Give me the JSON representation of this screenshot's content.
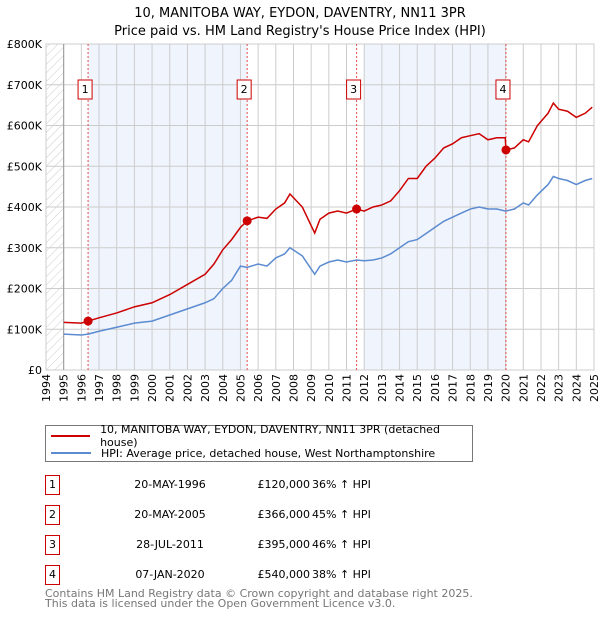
{
  "chart_data": {
    "type": "line",
    "title": "10, MANITOBA WAY, EYDON, DAVENTRY, NN11 3PR",
    "subtitle": "Price paid vs. HM Land Registry's House Price Index (HPI)",
    "ylim": [
      0,
      800000
    ],
    "xlim": [
      1994,
      2025
    ],
    "yticks": [
      {
        "v": 0,
        "label": "£0"
      },
      {
        "v": 100000,
        "label": "£100K"
      },
      {
        "v": 200000,
        "label": "£200K"
      },
      {
        "v": 300000,
        "label": "£300K"
      },
      {
        "v": 400000,
        "label": "£400K"
      },
      {
        "v": 500000,
        "label": "£500K"
      },
      {
        "v": 600000,
        "label": "£600K"
      },
      {
        "v": 700000,
        "label": "£700K"
      },
      {
        "v": 800000,
        "label": "£800K"
      }
    ],
    "xticks": [
      "1994",
      "1995",
      "1996",
      "1997",
      "1998",
      "1999",
      "2000",
      "2001",
      "2002",
      "2003",
      "2004",
      "2005",
      "2006",
      "2007",
      "2008",
      "2009",
      "2010",
      "2011",
      "2012",
      "2013",
      "2014",
      "2015",
      "2016",
      "2017",
      "2018",
      "2019",
      "2020",
      "2021",
      "2022",
      "2023",
      "2024",
      "2025"
    ],
    "grid": true,
    "shaded_periods": [
      [
        1996.38,
        2005.38
      ],
      [
        2012.0,
        2020.02
      ]
    ],
    "series": [
      {
        "name": "10, MANITOBA WAY, EYDON, DAVENTRY, NN11 3PR (detached house)",
        "color": "#cc0000",
        "x": [
          1995,
          1996,
          1996.38,
          1997,
          1998,
          1999,
          2000,
          2001,
          2002,
          2003,
          2003.5,
          2004,
          2004.5,
          2005,
          2005.38,
          2006,
          2006.5,
          2007,
          2007.5,
          2007.8,
          2008.5,
          2009.2,
          2009.5,
          2010,
          2010.5,
          2011,
          2011.57,
          2012,
          2012.5,
          2013,
          2013.5,
          2014,
          2014.5,
          2015,
          2015.5,
          2016,
          2016.5,
          2017,
          2017.5,
          2018,
          2018.5,
          2019,
          2019.5,
          2019.98,
          2020.02,
          2020.5,
          2021,
          2021.3,
          2021.8,
          2022.4,
          2022.7,
          2023,
          2023.5,
          2024,
          2024.5,
          2024.9
        ],
        "y": [
          117000,
          115000,
          120000,
          128000,
          140000,
          155000,
          165000,
          185000,
          210000,
          235000,
          260000,
          295000,
          320000,
          350000,
          366000,
          375000,
          372000,
          395000,
          410000,
          432000,
          400000,
          336000,
          370000,
          385000,
          390000,
          385000,
          395000,
          390000,
          400000,
          405000,
          415000,
          440000,
          470000,
          470000,
          500000,
          520000,
          545000,
          555000,
          570000,
          575000,
          580000,
          565000,
          570000,
          570000,
          540000,
          545000,
          565000,
          560000,
          600000,
          630000,
          655000,
          640000,
          635000,
          620000,
          630000,
          645000
        ]
      },
      {
        "name": "HPI: Average price, detached house, West Northamptonshire",
        "color": "#5b8bd0",
        "x": [
          1995,
          1996,
          1996.38,
          1997,
          1998,
          1999,
          2000,
          2001,
          2002,
          2003,
          2003.5,
          2004,
          2004.5,
          2005,
          2005.38,
          2006,
          2006.5,
          2007,
          2007.5,
          2007.8,
          2008.5,
          2009.2,
          2009.5,
          2010,
          2010.5,
          2011,
          2011.57,
          2012,
          2012.5,
          2013,
          2013.5,
          2014,
          2014.5,
          2015,
          2015.5,
          2016,
          2016.5,
          2017,
          2017.5,
          2018,
          2018.5,
          2019,
          2019.5,
          2020,
          2020.5,
          2021,
          2021.3,
          2021.8,
          2022.4,
          2022.7,
          2023,
          2023.5,
          2024,
          2024.5,
          2024.9
        ],
        "y": [
          88000,
          86000,
          88000,
          95000,
          105000,
          115000,
          120000,
          135000,
          150000,
          165000,
          175000,
          200000,
          220000,
          255000,
          252000,
          260000,
          255000,
          275000,
          285000,
          300000,
          280000,
          235000,
          255000,
          265000,
          270000,
          265000,
          270000,
          268000,
          270000,
          275000,
          285000,
          300000,
          315000,
          320000,
          335000,
          350000,
          365000,
          375000,
          385000,
          395000,
          400000,
          395000,
          395000,
          390000,
          395000,
          410000,
          405000,
          430000,
          455000,
          475000,
          470000,
          465000,
          455000,
          465000,
          470000
        ]
      }
    ],
    "sales": [
      {
        "n": "1",
        "x": 1996.38,
        "y": 120000,
        "date": "20-MAY-1996",
        "price": "£120,000",
        "hpi": "36% ↑ HPI"
      },
      {
        "n": "2",
        "x": 2005.38,
        "y": 366000,
        "date": "20-MAY-2005",
        "price": "£366,000",
        "hpi": "45% ↑ HPI"
      },
      {
        "n": "3",
        "x": 2011.57,
        "y": 395000,
        "date": "28-JUL-2011",
        "price": "£395,000",
        "hpi": "46% ↑ HPI"
      },
      {
        "n": "4",
        "x": 2020.02,
        "y": 540000,
        "date": "07-JAN-2020",
        "price": "£540,000",
        "hpi": "38% ↑ HPI"
      }
    ]
  },
  "footer": {
    "line1": "Contains HM Land Registry data © Crown copyright and database right 2025.",
    "line2": "This data is licensed under the Open Government Licence v3.0."
  }
}
